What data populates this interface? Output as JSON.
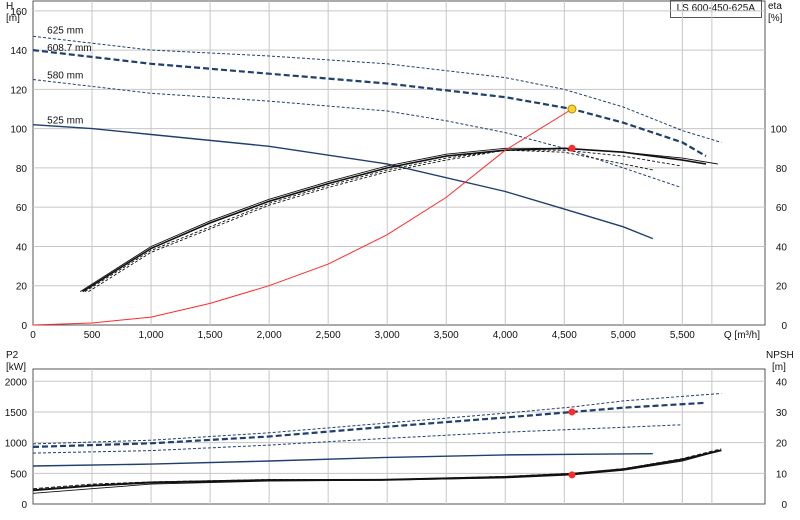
{
  "legend_label": "LS 600-450-625A",
  "chart_data": [
    {
      "type": "line",
      "name": "head-efficiency",
      "x_label": "Q [m³/h]",
      "xlim": [
        0,
        6200
      ],
      "x_ticks": [
        "0",
        "500",
        "1,000",
        "1,500",
        "2,000",
        "2,500",
        "3,000",
        "3,500",
        "4,000",
        "4,500",
        "5,000",
        "5,500"
      ],
      "x_tick_values": [
        0,
        500,
        1000,
        1500,
        2000,
        2500,
        3000,
        3500,
        4000,
        4500,
        5000,
        5500
      ],
      "left_axis": {
        "label_top": "H",
        "label_unit": "[m]",
        "ylim": [
          0,
          165
        ],
        "ticks": [
          0,
          20,
          40,
          60,
          80,
          100,
          120,
          140,
          160
        ]
      },
      "right_axis": {
        "label_top": "eta",
        "label_unit": "[%]",
        "ylim": [
          0,
          165
        ],
        "ticks": [
          0,
          20,
          40,
          60,
          80,
          100
        ]
      },
      "grid": true,
      "series": [
        {
          "name": "625 mm",
          "label_x": 120,
          "label_y": 147,
          "points": [
            [
              0,
              147
            ],
            [
              1000,
              140
            ],
            [
              2000,
              137
            ],
            [
              3000,
              133
            ],
            [
              4000,
              126
            ],
            [
              4500,
              120
            ],
            [
              5000,
              111
            ],
            [
              5500,
              99
            ],
            [
              5830,
              93
            ]
          ],
          "style": "dashed-thin"
        },
        {
          "name": "608.7 mm",
          "label_x": 120,
          "label_y": 138,
          "points": [
            [
              0,
              140
            ],
            [
              1000,
              133
            ],
            [
              2000,
              128
            ],
            [
              3000,
              123
            ],
            [
              4000,
              116
            ],
            [
              4565,
              110
            ],
            [
              5000,
              103
            ],
            [
              5500,
              93
            ],
            [
              5700,
              86
            ]
          ],
          "style": "dashed-thick"
        },
        {
          "name": "580 mm",
          "label_x": 120,
          "label_y": 124,
          "points": [
            [
              0,
              125
            ],
            [
              1000,
              118
            ],
            [
              2000,
              114
            ],
            [
              3000,
              109
            ],
            [
              3500,
              104
            ],
            [
              4000,
              98
            ],
            [
              4500,
              90
            ],
            [
              5000,
              80
            ],
            [
              5490,
              70
            ]
          ],
          "style": "dashed-thin"
        },
        {
          "name": "525 mm",
          "label_x": 120,
          "label_y": 101,
          "points": [
            [
              0,
              102
            ],
            [
              500,
              100
            ],
            [
              1000,
              97
            ],
            [
              2000,
              91
            ],
            [
              3000,
              82
            ],
            [
              4000,
              68
            ],
            [
              4500,
              59
            ],
            [
              5000,
              50
            ],
            [
              5250,
              44
            ]
          ],
          "style": "solid"
        }
      ],
      "efficiency_curves": [
        {
          "points": [
            [
              400,
              17
            ],
            [
              1000,
              40
            ],
            [
              1500,
              53
            ],
            [
              2000,
              64
            ],
            [
              2500,
              73
            ],
            [
              3000,
              81
            ],
            [
              3500,
              87
            ],
            [
              4000,
              90
            ],
            [
              4500,
              90
            ],
            [
              5000,
              88
            ],
            [
              5500,
              85
            ],
            [
              5800,
              82
            ]
          ]
        },
        {
          "points": [
            [
              420,
              17
            ],
            [
              1000,
              39
            ],
            [
              1500,
              52
            ],
            [
              2000,
              63
            ],
            [
              2500,
              72
            ],
            [
              3000,
              80
            ],
            [
              3500,
              86
            ],
            [
              4000,
              89
            ],
            [
              4500,
              90
            ],
            [
              5000,
              88
            ],
            [
              5500,
              84
            ],
            [
              5700,
              82
            ]
          ]
        },
        {
          "points": [
            [
              440,
              17
            ],
            [
              1000,
              38
            ],
            [
              1500,
              50
            ],
            [
              2000,
              62
            ],
            [
              2500,
              71
            ],
            [
              3000,
              79
            ],
            [
              3500,
              85
            ],
            [
              4000,
              89
            ],
            [
              4500,
              89
            ],
            [
              5000,
              86
            ],
            [
              5490,
              81
            ]
          ]
        },
        {
          "points": [
            [
              470,
              17
            ],
            [
              1000,
              37
            ],
            [
              1500,
              49
            ],
            [
              2000,
              61
            ],
            [
              2500,
              70
            ],
            [
              3000,
              78
            ],
            [
              3500,
              84
            ],
            [
              4000,
              89
            ],
            [
              4500,
              88
            ],
            [
              5000,
              82
            ],
            [
              5250,
              79
            ]
          ]
        }
      ],
      "system_curve": {
        "points": [
          [
            0,
            0
          ],
          [
            500,
            1
          ],
          [
            1000,
            4
          ],
          [
            1500,
            11
          ],
          [
            2000,
            20
          ],
          [
            2500,
            31
          ],
          [
            3000,
            46
          ],
          [
            3500,
            65
          ],
          [
            4000,
            89
          ],
          [
            4565,
            110
          ]
        ]
      },
      "operating_point": {
        "q": 4565,
        "h": 110
      },
      "efficiency_point": {
        "q": 4565,
        "eta": 90
      }
    },
    {
      "type": "line",
      "name": "power-npsh",
      "xlim": [
        0,
        6200
      ],
      "left_axis": {
        "label_top": "P2",
        "label_unit": "[kW]",
        "ylim": [
          0,
          2200
        ],
        "ticks": [
          0,
          500,
          1000,
          1500,
          2000
        ]
      },
      "right_axis": {
        "label_top": "NPSH",
        "label_unit": "[m]",
        "ylim": [
          0,
          44
        ],
        "ticks": [
          0,
          10,
          20,
          30,
          40
        ]
      },
      "grid": true,
      "power_series": [
        {
          "points": [
            [
              0,
              980
            ],
            [
              1000,
              1040
            ],
            [
              2000,
              1160
            ],
            [
              3000,
              1320
            ],
            [
              4000,
              1480
            ],
            [
              4565,
              1580
            ],
            [
              5000,
              1680
            ],
            [
              5830,
              1800
            ]
          ],
          "style": "dashed-thin"
        },
        {
          "points": [
            [
              0,
              930
            ],
            [
              1000,
              990
            ],
            [
              2000,
              1100
            ],
            [
              3000,
              1260
            ],
            [
              4000,
              1410
            ],
            [
              4565,
              1500
            ],
            [
              5000,
              1570
            ],
            [
              5700,
              1650
            ]
          ],
          "style": "dashed-thick"
        },
        {
          "points": [
            [
              0,
              830
            ],
            [
              1000,
              870
            ],
            [
              2000,
              960
            ],
            [
              3000,
              1070
            ],
            [
              4000,
              1170
            ],
            [
              5000,
              1250
            ],
            [
              5490,
              1290
            ]
          ],
          "style": "dashed-thin"
        },
        {
          "points": [
            [
              0,
              620
            ],
            [
              1000,
              650
            ],
            [
              2000,
              700
            ],
            [
              3000,
              760
            ],
            [
              4000,
              800
            ],
            [
              5250,
              820
            ]
          ],
          "style": "solid"
        }
      ],
      "npsh_series": [
        {
          "points": [
            [
              0,
              3.5
            ],
            [
              500,
              5
            ],
            [
              1000,
              6.5
            ],
            [
              2000,
              7.5
            ],
            [
              3000,
              7.8
            ],
            [
              4000,
              8.5
            ],
            [
              4565,
              9.5
            ],
            [
              5000,
              11
            ],
            [
              5500,
              14
            ],
            [
              5830,
              17.5
            ]
          ]
        },
        {
          "points": [
            [
              0,
              4.5
            ],
            [
              500,
              6
            ],
            [
              1000,
              7
            ],
            [
              2000,
              7.8
            ],
            [
              3000,
              7.9
            ],
            [
              4000,
              8.8
            ],
            [
              4565,
              9.8
            ],
            [
              5000,
              11.3
            ],
            [
              5500,
              14.5
            ],
            [
              5830,
              17.5
            ]
          ]
        },
        {
          "points": [
            [
              0,
              5
            ],
            [
              500,
              6.5
            ],
            [
              1000,
              7.2
            ],
            [
              2000,
              8
            ],
            [
              3000,
              8
            ],
            [
              4000,
              9
            ],
            [
              4565,
              10
            ],
            [
              5000,
              11.5
            ],
            [
              5500,
              14.8
            ],
            [
              5830,
              18
            ]
          ]
        }
      ],
      "power_point": {
        "q": 4565,
        "p2": 1500
      },
      "npsh_point": {
        "q": 4565,
        "npsh": 9.5
      }
    }
  ],
  "colors": {
    "navy": "#1f3f6e",
    "black": "#111111",
    "red": "#ff2a2a",
    "grid": "#c6c6c6",
    "op_fill": "#ffd22e"
  }
}
